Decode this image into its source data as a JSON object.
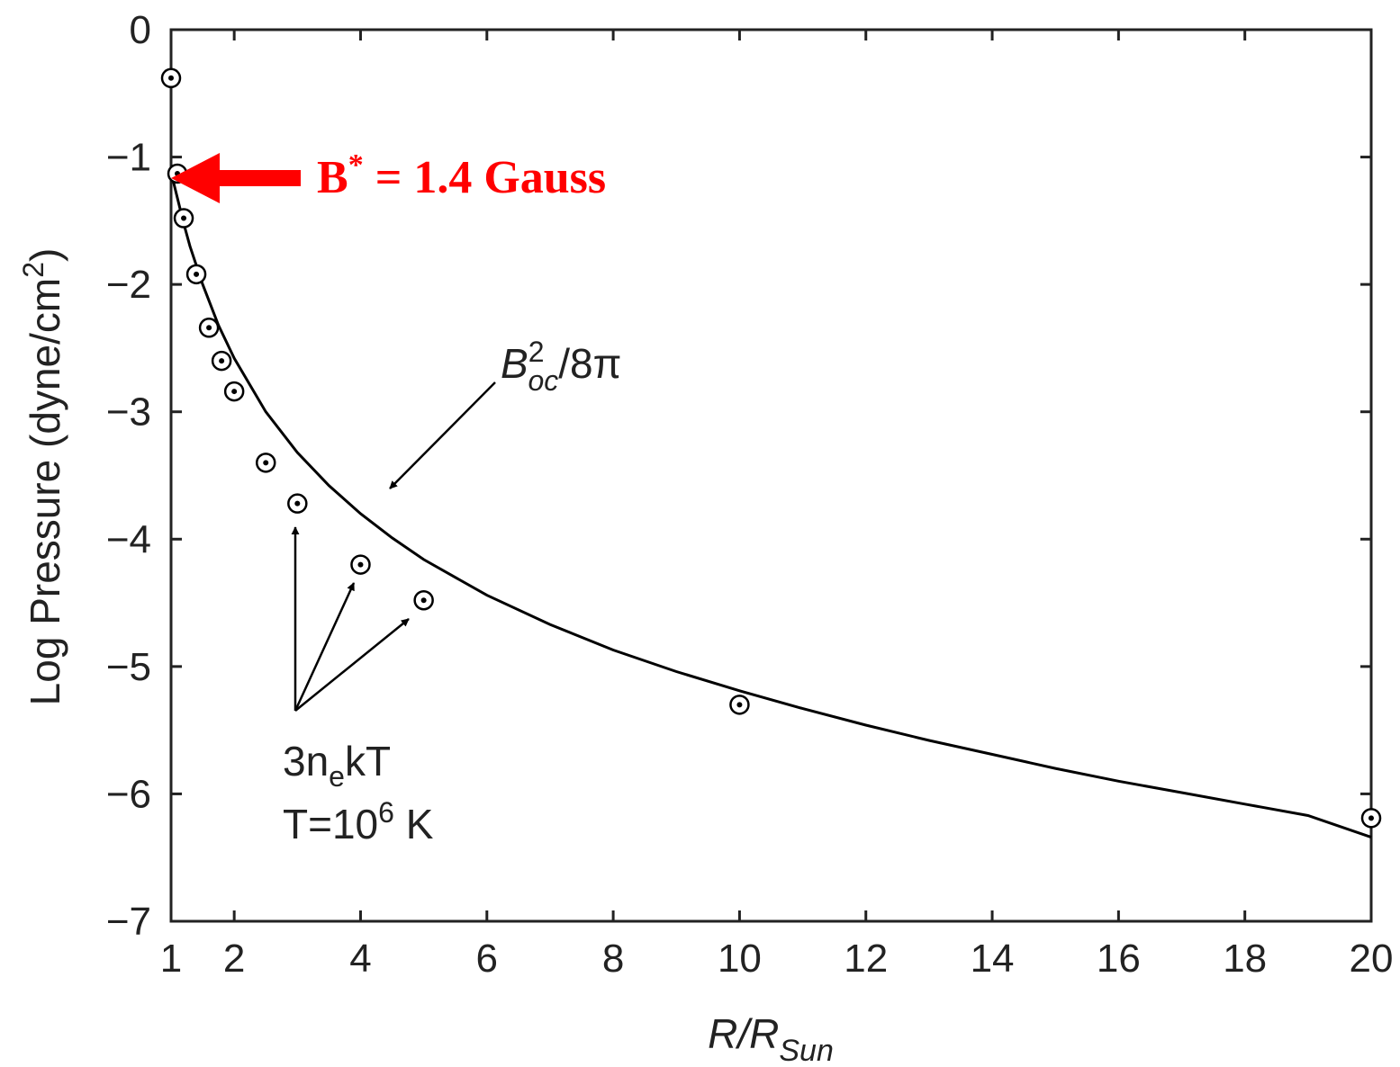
{
  "chart_data": {
    "type": "scatter",
    "xlabel": "R/R",
    "xlabel_sub": "Sun",
    "ylabel_main": "Log Pressure (dyne/cm",
    "ylabel_sup": "2",
    "ylabel_close": ")",
    "xlim": [
      1,
      20
    ],
    "ylim": [
      -7,
      0
    ],
    "xticks": [
      1,
      2,
      4,
      6,
      8,
      10,
      12,
      14,
      16,
      18,
      20
    ],
    "xtick_labels": [
      "1",
      "2",
      "4",
      "6",
      "8",
      "10",
      "12",
      "14",
      "16",
      "18",
      "20"
    ],
    "yticks": [
      0,
      -1,
      -2,
      -3,
      -4,
      -5,
      -6,
      -7
    ],
    "ytick_labels": [
      "0",
      "−1",
      "−2",
      "−3",
      "−4",
      "−5",
      "−6",
      "−7"
    ],
    "grid": false,
    "series": [
      {
        "type": "line",
        "x": [
          1.0,
          1.05,
          1.1,
          1.2,
          1.3,
          1.5,
          1.75,
          2.0,
          2.5,
          3.0,
          3.5,
          4.0,
          4.5,
          5.0,
          6.0,
          7.0,
          8.0,
          9.0,
          10.0,
          11.0,
          12.0,
          13.0,
          14.0,
          15.0,
          16.0,
          17.0,
          18.0,
          19.0,
          20.0
        ],
        "y": [
          -1.1,
          -1.22,
          -1.32,
          -1.52,
          -1.7,
          -2.0,
          -2.32,
          -2.58,
          -3.0,
          -3.32,
          -3.58,
          -3.8,
          -3.99,
          -4.16,
          -4.44,
          -4.67,
          -4.87,
          -5.04,
          -5.19,
          -5.33,
          -5.46,
          -5.58,
          -5.69,
          -5.8,
          -5.9,
          -5.99,
          -6.08,
          -6.17,
          -6.34
        ]
      },
      {
        "type": "scatter",
        "x": [
          1.0,
          1.1,
          1.2,
          1.4,
          1.6,
          1.8,
          2.0,
          2.5,
          3.0,
          4.0,
          5.0,
          10.0,
          20.0
        ],
        "y": [
          -0.38,
          -1.13,
          -1.48,
          -1.92,
          -2.34,
          -2.6,
          -2.84,
          -3.4,
          -3.72,
          -4.2,
          -4.48,
          -5.3,
          -6.19
        ]
      }
    ],
    "annotations": {
      "curve_label_base": "B",
      "curve_label_sup": "2",
      "curve_label_sub": "oc",
      "curve_label_rest": "/8π",
      "points_label_base": "3n",
      "points_label_sub": "e",
      "points_label_rest": "kT",
      "temp_label_base": "T=10",
      "temp_label_sup": "6",
      "temp_label_rest": " K",
      "highlight_base": "B",
      "highlight_sup": "*",
      "highlight_rest": " = 1.4 Gauss"
    },
    "colors": {
      "axis": "#222222",
      "curve": "#000000",
      "highlight": "#ff0000"
    }
  }
}
